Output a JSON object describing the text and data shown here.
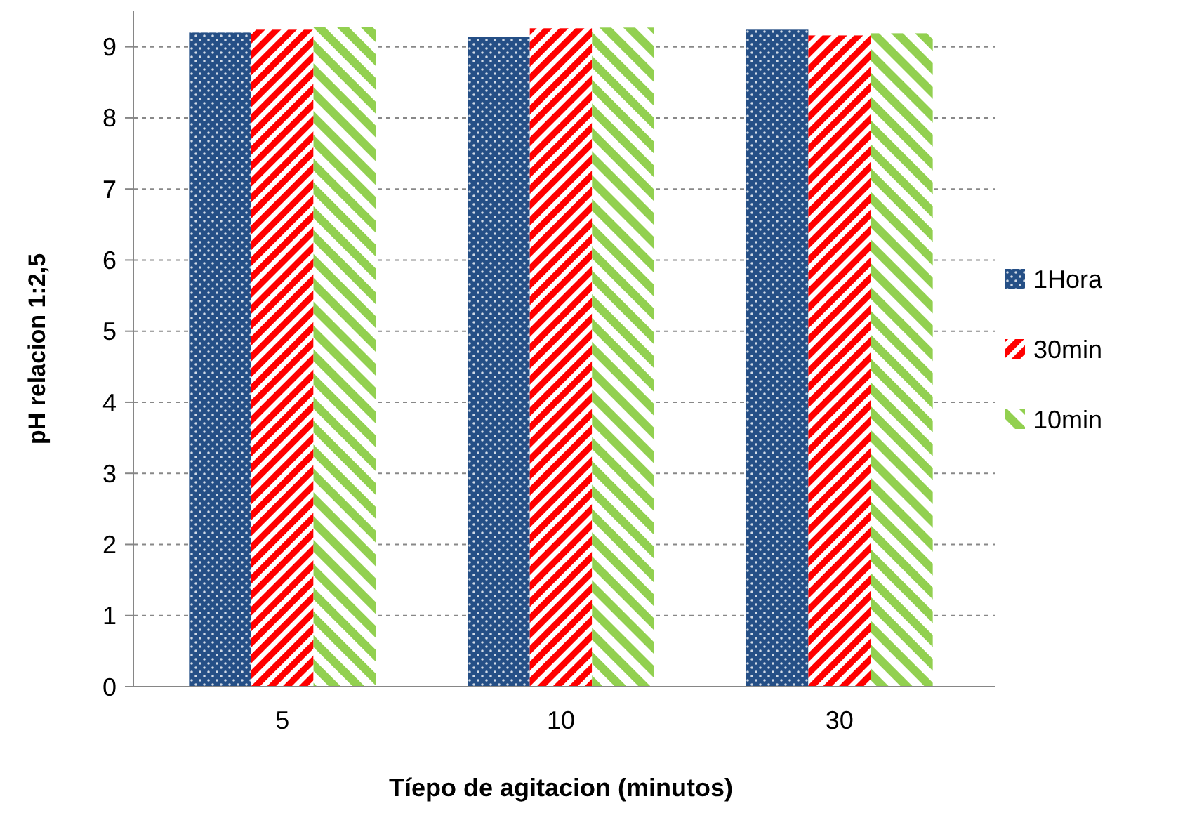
{
  "chart_data": {
    "type": "bar",
    "xlabel": "Tíepo de agitacion (minutos)",
    "ylabel": "pH relacion 1:2,5",
    "categories": [
      "5",
      "10",
      "30"
    ],
    "series": [
      {
        "name": "1Hora",
        "color": "#254f86",
        "values": [
          9.2,
          9.14,
          9.24
        ]
      },
      {
        "name": "30min",
        "color": "#ff0000",
        "values": [
          9.24,
          9.26,
          9.16
        ]
      },
      {
        "name": "10min",
        "color": "#92d050",
        "values": [
          9.28,
          9.27,
          9.19
        ]
      }
    ],
    "ylim": [
      0,
      9.5
    ],
    "yticks": [
      0,
      1,
      2,
      3,
      4,
      5,
      6,
      7,
      8,
      9
    ],
    "grid": "y",
    "legend": "right"
  }
}
